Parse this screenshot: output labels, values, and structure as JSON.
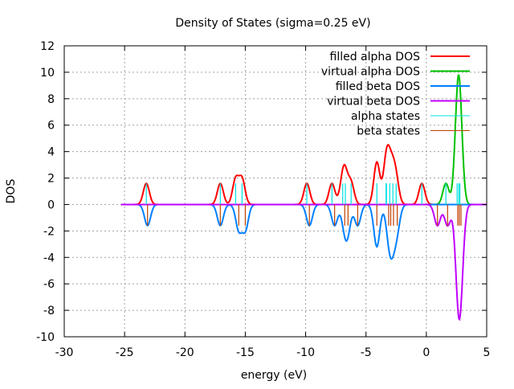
{
  "chart_data": {
    "type": "line",
    "title": "Density of States (sigma=0.25 eV)",
    "xlabel": "energy (eV)",
    "ylabel": "DOS",
    "xlim": [
      -30,
      5
    ],
    "ylim": [
      -10,
      12
    ],
    "xticks": [
      -30,
      -25,
      -20,
      -15,
      -10,
      -5,
      0,
      5
    ],
    "yticks": [
      -10,
      -8,
      -6,
      -4,
      -2,
      0,
      2,
      4,
      6,
      8,
      10,
      12
    ],
    "grid": true,
    "legend_position": "top-right",
    "sigma": 0.25,
    "curve_range": [
      -25.3,
      5
    ],
    "stick_height": 1.6,
    "series": [
      {
        "name": "filled alpha DOS",
        "color": "#ff0000",
        "sign": 1,
        "states": [
          [
            -23.2,
            1
          ],
          [
            -17.07,
            1
          ],
          [
            -15.8,
            1.2
          ],
          [
            -15.27,
            1.2
          ],
          [
            -9.9,
            1
          ],
          [
            -7.82,
            1
          ],
          [
            -6.93,
            1
          ],
          [
            -6.71,
            1
          ],
          [
            -6.23,
            1
          ],
          [
            -4.1,
            2
          ],
          [
            -3.34,
            1
          ],
          [
            -3.3,
            1
          ],
          [
            -3.03,
            1
          ],
          [
            -2.77,
            1
          ],
          [
            -2.5,
            1
          ],
          [
            -0.37,
            1
          ]
        ]
      },
      {
        "name": "virtual alpha DOS",
        "color": "#00c000",
        "sign": 1,
        "states": [
          [
            1.62,
            1
          ],
          [
            2.55,
            2.2
          ],
          [
            2.69,
            2.2
          ],
          [
            2.78,
            2.2
          ]
        ]
      },
      {
        "name": "filled beta DOS",
        "color": "#0080ff",
        "sign": -1,
        "states": [
          [
            -23.1,
            1
          ],
          [
            -17.07,
            1
          ],
          [
            -15.54,
            1.2
          ],
          [
            -15.0,
            1.2
          ],
          [
            -9.69,
            1
          ],
          [
            -7.6,
            1
          ],
          [
            -6.76,
            1
          ],
          [
            -6.49,
            1
          ],
          [
            -5.69,
            1
          ],
          [
            -4.1,
            2
          ],
          [
            -3.12,
            1
          ],
          [
            -2.95,
            1
          ],
          [
            -2.72,
            1
          ],
          [
            -2.41,
            1
          ]
        ]
      },
      {
        "name": "virtual beta DOS",
        "color": "#c000ff",
        "sign": -1,
        "states": [
          [
            0.92,
            1
          ],
          [
            1.76,
            1
          ],
          [
            2.6,
            2
          ],
          [
            2.73,
            2
          ],
          [
            2.87,
            2
          ]
        ]
      },
      {
        "name": "alpha states",
        "color": "#00e0e0",
        "type": "sticks",
        "sign": 1,
        "energies": [
          -23.2,
          -17.07,
          -15.8,
          -15.27,
          -9.9,
          -7.82,
          -6.93,
          -6.71,
          -6.23,
          -4.1,
          -3.34,
          -3.3,
          -3.03,
          -2.77,
          -2.5,
          -0.37,
          1.62,
          2.55,
          2.69,
          2.78
        ]
      },
      {
        "name": "beta states",
        "color": "#c04000",
        "type": "sticks",
        "sign": -1,
        "energies": [
          -23.1,
          -17.07,
          -15.54,
          -15.0,
          -9.69,
          -7.6,
          -6.76,
          -6.49,
          -5.69,
          -4.1,
          -3.12,
          -2.95,
          -2.72,
          -2.41,
          0.92,
          1.76,
          2.6,
          2.73,
          2.87
        ]
      }
    ]
  }
}
